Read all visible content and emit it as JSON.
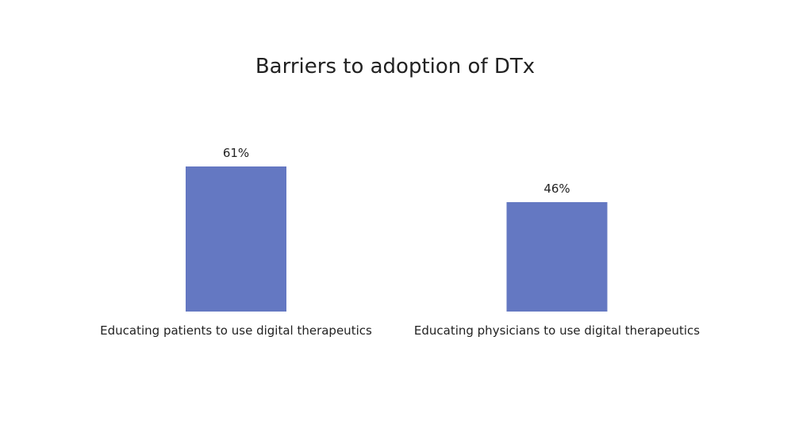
{
  "chart_data": {
    "type": "bar",
    "title": "Barriers to adoption of DTx",
    "categories": [
      "Educating patients to use digital therapeutics",
      "Educating physicians to use digital therapeutics"
    ],
    "values": [
      61,
      46
    ],
    "value_labels": [
      "61%",
      "46%"
    ],
    "unit": "%",
    "ylim": [
      0,
      100
    ],
    "grid": false,
    "legend": "none",
    "bar_color": "#6478c2"
  }
}
